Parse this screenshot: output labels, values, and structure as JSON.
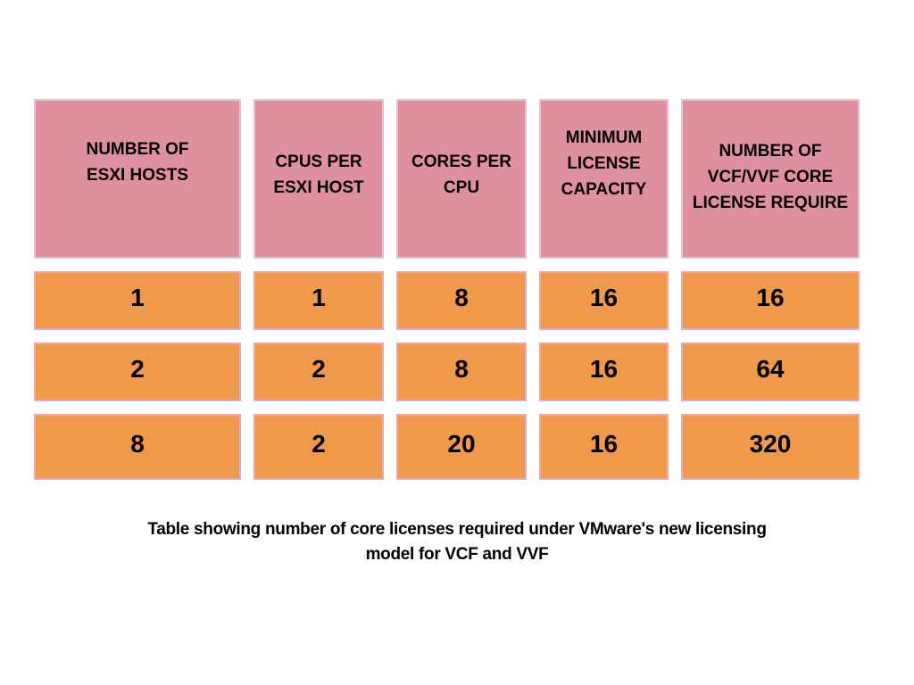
{
  "chart_data": {
    "type": "table",
    "columns": [
      "NUMBER OF\nESXI HOSTS",
      "CPUS PER\nESXI HOST",
      "CORES PER\nCPU",
      "MINIMUM\nLICENSE\nCAPACITY",
      "NUMBER OF\nVCF/VVF CORE\nLICENSE REQUIRE"
    ],
    "rows": [
      [
        "1",
        "1",
        "8",
        "16",
        "16"
      ],
      [
        "2",
        "2",
        "8",
        "16",
        "64"
      ],
      [
        "8",
        "2",
        "20",
        "16",
        "320"
      ]
    ]
  },
  "caption": {
    "text": "Table showing number of core licenses required under VMware's new licensing\nmodel for VCF and VVF"
  },
  "colors": {
    "header_bg": "#df909e",
    "header_border": "#efc0ca",
    "cell_bg": "#f0994a",
    "cell_border": "#e9a9b7",
    "text_color": "#000000"
  }
}
